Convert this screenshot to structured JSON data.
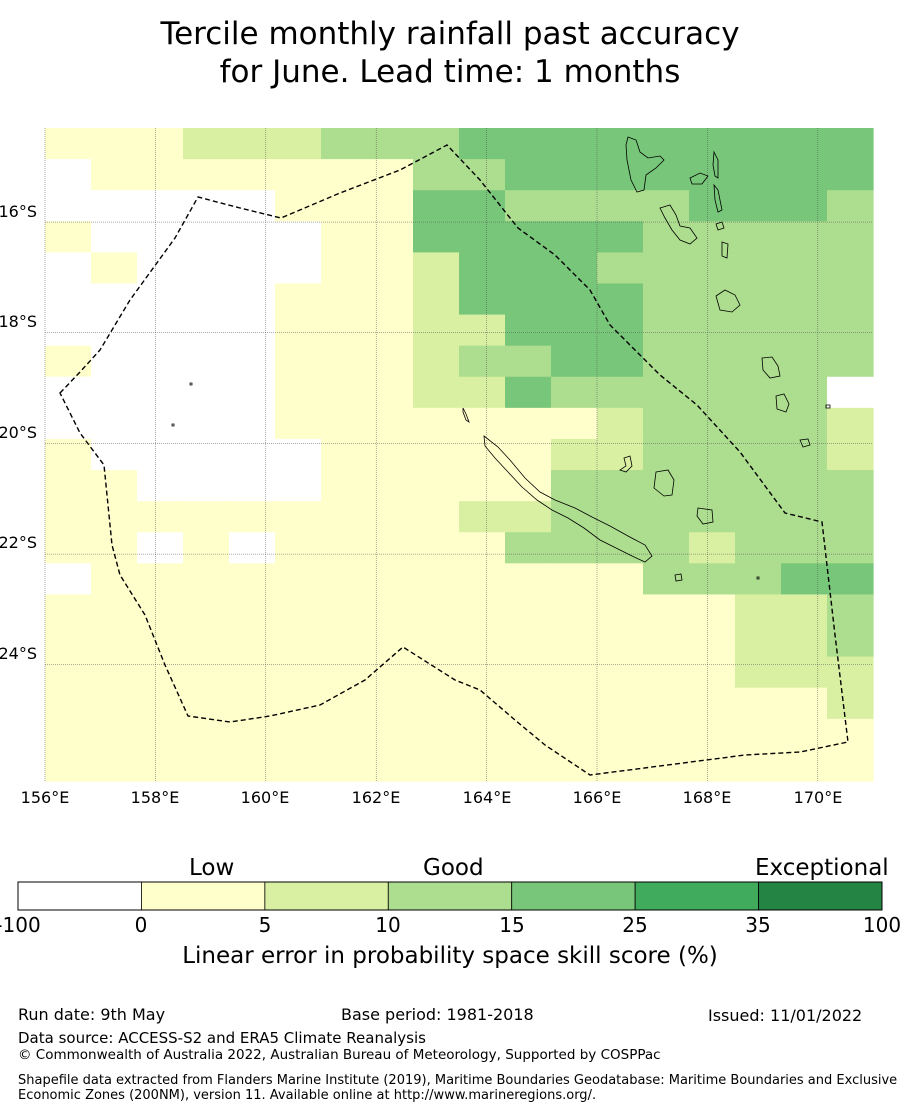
{
  "title_line1": "Tercile monthly rainfall past accuracy",
  "title_line2": "for June. Lead time: 1 months",
  "map": {
    "lon_labels": [
      "156°E",
      "158°E",
      "160°E",
      "162°E",
      "164°E",
      "166°E",
      "168°E",
      "170°E"
    ],
    "lat_labels": [
      "16°S",
      "18°S",
      "20°S",
      "22°S",
      "24°S"
    ],
    "lon_range": [
      156,
      171
    ],
    "lat_range": [
      -14.3,
      -26.1
    ],
    "cell_size_deg": 0.833,
    "grid_cols": 18,
    "grid_rows": 21,
    "skill_class_grid": [
      "111222333444444444",
      "011111113344444444",
      "000001114433334443",
      "100000114444433333",
      "010000112444333333",
      "000001112444433333",
      "000001112244433333",
      "100001112334433333",
      "000001112243333330",
      "000001111111233332",
      "100000111112233332",
      "110000111113333333",
      "111111111223333333",
      "110101111133332333",
      "011111111111133344",
      "111111111111111223",
      "111111111111111223",
      "111111111111111222",
      "111111111111111112",
      "111111111111111111",
      "111111111111111111"
    ]
  },
  "colorbar": {
    "categories": [
      "Low",
      "Good",
      "Exceptional"
    ],
    "ticks": [
      "-100",
      "0",
      "5",
      "10",
      "15",
      "25",
      "35",
      "100"
    ],
    "colors": [
      "#ffffff",
      "#ffffcc",
      "#d9f0a3",
      "#addd8e",
      "#78c679",
      "#41ab5d",
      "#238443"
    ],
    "label": "Linear error in probability space skill score (%)"
  },
  "footer": {
    "run_date": "Run date: 9th May",
    "base_period": "Base period: 1981-2018",
    "issued": "Issued: 11/01/2022",
    "data_source": "Data source: ACCESS-S2 and ERA5 Climate Reanalysis",
    "copyright": "© Commonwealth of Australia 2022, Australian Bureau of Meteorology, Supported by COSPPac",
    "shapefile_note": "Shapefile data extracted from Flanders Marine Institute (2019), Maritime Boundaries Geodatabase: Maritime Boundaries and Exclusive Economic Zones (200NM), version 11. Available online at http://www.marineregions.org/."
  }
}
